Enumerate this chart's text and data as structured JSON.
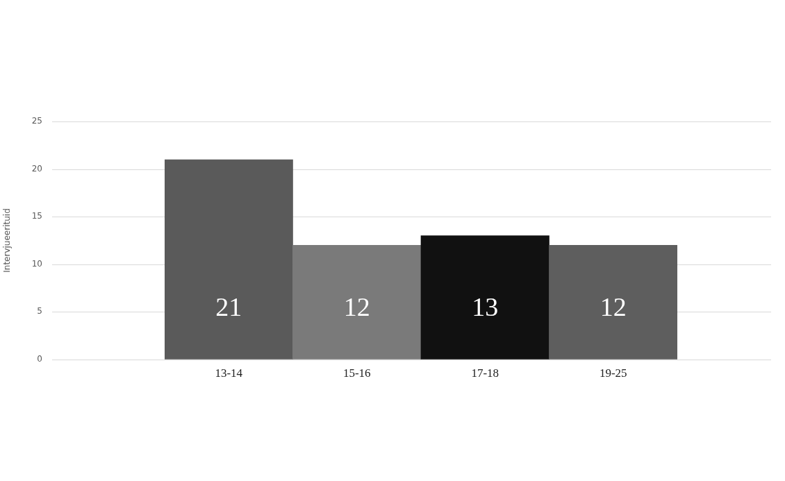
{
  "chart_data": {
    "type": "bar",
    "ylabel": "Intervjueerituid",
    "categories": [
      "13-14",
      "15-16",
      "17-18",
      "19-25"
    ],
    "values": [
      21,
      12,
      13,
      12
    ],
    "colors": [
      "#5a5a5a",
      "#7a7a7a",
      "#111111",
      "#5e5e5e"
    ],
    "ylim": [
      0,
      25
    ],
    "yticks": [
      0,
      5,
      10,
      15,
      20,
      25
    ],
    "grid": "y",
    "data_labels": true,
    "legend": false
  }
}
